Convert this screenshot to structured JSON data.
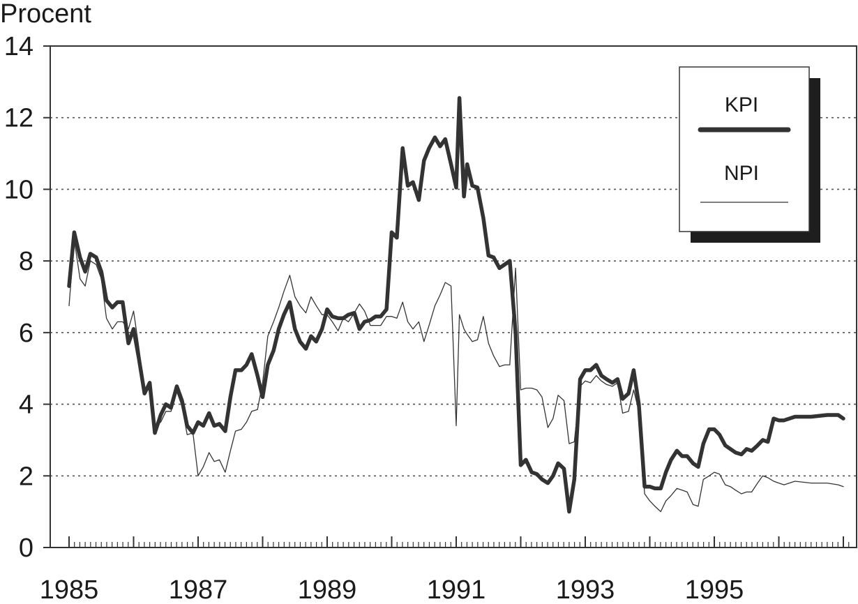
{
  "chart_data": {
    "type": "line",
    "title": "",
    "xlabel": "",
    "ylabel": "Procent",
    "ylim": [
      0,
      14
    ],
    "xlim": [
      1985,
      1997.1
    ],
    "grid": true,
    "legend_position": "top-right",
    "x_ticks": [
      "1985",
      "1987",
      "1989",
      "1991",
      "1993",
      "1995"
    ],
    "y_ticks": [
      "0",
      "2",
      "4",
      "6",
      "8",
      "10",
      "12",
      "14"
    ],
    "series": [
      {
        "name": "KPI",
        "color": "#333333",
        "style": "thick",
        "points": [
          [
            1985.0,
            7.3
          ],
          [
            1985.08,
            8.8
          ],
          [
            1985.17,
            8.1
          ],
          [
            1985.25,
            7.7
          ],
          [
            1985.33,
            8.2
          ],
          [
            1985.42,
            8.1
          ],
          [
            1985.5,
            7.7
          ],
          [
            1985.58,
            6.9
          ],
          [
            1985.67,
            6.7
          ],
          [
            1985.75,
            6.85
          ],
          [
            1985.83,
            6.85
          ],
          [
            1985.92,
            5.7
          ],
          [
            1986.0,
            6.1
          ],
          [
            1986.08,
            5.3
          ],
          [
            1986.17,
            4.3
          ],
          [
            1986.25,
            4.6
          ],
          [
            1986.33,
            3.2
          ],
          [
            1986.42,
            3.7
          ],
          [
            1986.5,
            4.0
          ],
          [
            1986.58,
            3.9
          ],
          [
            1986.67,
            4.5
          ],
          [
            1986.75,
            4.1
          ],
          [
            1986.83,
            3.4
          ],
          [
            1986.92,
            3.2
          ],
          [
            1987.0,
            3.5
          ],
          [
            1987.08,
            3.4
          ],
          [
            1987.17,
            3.75
          ],
          [
            1987.25,
            3.4
          ],
          [
            1987.33,
            3.45
          ],
          [
            1987.42,
            3.25
          ],
          [
            1987.5,
            4.2
          ],
          [
            1987.58,
            4.95
          ],
          [
            1987.67,
            4.95
          ],
          [
            1987.75,
            5.1
          ],
          [
            1987.83,
            5.4
          ],
          [
            1987.92,
            4.8
          ],
          [
            1988.0,
            4.2
          ],
          [
            1988.08,
            5.1
          ],
          [
            1988.17,
            5.5
          ],
          [
            1988.25,
            6.1
          ],
          [
            1988.33,
            6.5
          ],
          [
            1988.42,
            6.85
          ],
          [
            1988.5,
            6.1
          ],
          [
            1988.58,
            5.75
          ],
          [
            1988.67,
            5.55
          ],
          [
            1988.75,
            5.9
          ],
          [
            1988.83,
            5.75
          ],
          [
            1988.92,
            6.1
          ],
          [
            1989.0,
            6.65
          ],
          [
            1989.08,
            6.45
          ],
          [
            1989.17,
            6.4
          ],
          [
            1989.25,
            6.4
          ],
          [
            1989.33,
            6.5
          ],
          [
            1989.42,
            6.55
          ],
          [
            1989.5,
            6.1
          ],
          [
            1989.58,
            6.3
          ],
          [
            1989.67,
            6.35
          ],
          [
            1989.75,
            6.45
          ],
          [
            1989.83,
            6.45
          ],
          [
            1989.92,
            6.65
          ],
          [
            1990.0,
            8.8
          ],
          [
            1990.08,
            8.65
          ],
          [
            1990.17,
            11.15
          ],
          [
            1990.25,
            10.1
          ],
          [
            1990.33,
            10.2
          ],
          [
            1990.42,
            9.7
          ],
          [
            1990.5,
            10.8
          ],
          [
            1990.58,
            11.15
          ],
          [
            1990.67,
            11.45
          ],
          [
            1990.75,
            11.2
          ],
          [
            1990.83,
            11.4
          ],
          [
            1990.92,
            10.7
          ],
          [
            1991.0,
            10.05
          ],
          [
            1991.05,
            12.55
          ],
          [
            1991.12,
            9.8
          ],
          [
            1991.17,
            10.7
          ],
          [
            1991.25,
            10.1
          ],
          [
            1991.33,
            10.05
          ],
          [
            1991.42,
            9.2
          ],
          [
            1991.5,
            8.15
          ],
          [
            1991.58,
            8.1
          ],
          [
            1991.67,
            7.8
          ],
          [
            1991.75,
            7.9
          ],
          [
            1991.83,
            8.0
          ],
          [
            1991.92,
            6.0
          ],
          [
            1992.0,
            2.3
          ],
          [
            1992.08,
            2.45
          ],
          [
            1992.17,
            2.1
          ],
          [
            1992.25,
            2.05
          ],
          [
            1992.33,
            1.9
          ],
          [
            1992.42,
            1.8
          ],
          [
            1992.5,
            2.0
          ],
          [
            1992.58,
            2.35
          ],
          [
            1992.67,
            2.2
          ],
          [
            1992.75,
            1.0
          ],
          [
            1992.83,
            1.9
          ],
          [
            1992.92,
            4.7
          ],
          [
            1993.0,
            4.95
          ],
          [
            1993.08,
            4.95
          ],
          [
            1993.17,
            5.1
          ],
          [
            1993.25,
            4.8
          ],
          [
            1993.33,
            4.7
          ],
          [
            1993.42,
            4.6
          ],
          [
            1993.5,
            4.7
          ],
          [
            1993.58,
            4.15
          ],
          [
            1993.67,
            4.3
          ],
          [
            1993.75,
            4.95
          ],
          [
            1993.83,
            4.0
          ],
          [
            1993.92,
            1.7
          ],
          [
            1994.0,
            1.7
          ],
          [
            1994.08,
            1.65
          ],
          [
            1994.17,
            1.65
          ],
          [
            1994.25,
            2.1
          ],
          [
            1994.33,
            2.45
          ],
          [
            1994.42,
            2.7
          ],
          [
            1994.5,
            2.55
          ],
          [
            1994.58,
            2.55
          ],
          [
            1994.67,
            2.35
          ],
          [
            1994.75,
            2.25
          ],
          [
            1994.83,
            2.9
          ],
          [
            1994.92,
            3.3
          ],
          [
            1995.0,
            3.3
          ],
          [
            1995.08,
            3.15
          ],
          [
            1995.17,
            2.85
          ],
          [
            1995.25,
            2.75
          ],
          [
            1995.33,
            2.65
          ],
          [
            1995.42,
            2.6
          ],
          [
            1995.5,
            2.75
          ],
          [
            1995.58,
            2.7
          ],
          [
            1995.67,
            2.85
          ],
          [
            1995.75,
            3.0
          ],
          [
            1995.83,
            2.95
          ],
          [
            1995.92,
            3.6
          ],
          [
            1996.0,
            3.55
          ],
          [
            1996.08,
            3.55
          ],
          [
            1996.25,
            3.65
          ],
          [
            1996.5,
            3.65
          ],
          [
            1996.75,
            3.7
          ],
          [
            1996.92,
            3.7
          ],
          [
            1997.0,
            3.6
          ]
        ]
      },
      {
        "name": "NPI",
        "color": "#333333",
        "style": "thin",
        "points": [
          [
            1985.0,
            6.75
          ],
          [
            1985.08,
            8.6
          ],
          [
            1985.17,
            7.5
          ],
          [
            1985.25,
            7.3
          ],
          [
            1985.33,
            8.0
          ],
          [
            1985.42,
            7.9
          ],
          [
            1985.5,
            7.5
          ],
          [
            1985.58,
            6.4
          ],
          [
            1985.67,
            6.1
          ],
          [
            1985.75,
            6.3
          ],
          [
            1985.83,
            6.3
          ],
          [
            1985.92,
            6.1
          ],
          [
            1986.0,
            6.6
          ],
          [
            1986.08,
            5.6
          ],
          [
            1986.17,
            4.4
          ],
          [
            1986.25,
            4.4
          ],
          [
            1986.33,
            3.4
          ],
          [
            1986.42,
            3.5
          ],
          [
            1986.5,
            3.8
          ],
          [
            1986.58,
            3.8
          ],
          [
            1986.67,
            4.35
          ],
          [
            1986.75,
            3.95
          ],
          [
            1986.83,
            3.15
          ],
          [
            1986.92,
            3.2
          ],
          [
            1987.0,
            2.0
          ],
          [
            1987.08,
            2.25
          ],
          [
            1987.17,
            2.65
          ],
          [
            1987.25,
            2.4
          ],
          [
            1987.33,
            2.45
          ],
          [
            1987.42,
            2.1
          ],
          [
            1987.5,
            2.7
          ],
          [
            1987.58,
            3.25
          ],
          [
            1987.67,
            3.3
          ],
          [
            1987.75,
            3.5
          ],
          [
            1987.83,
            3.8
          ],
          [
            1987.92,
            3.85
          ],
          [
            1988.0,
            4.6
          ],
          [
            1988.08,
            5.9
          ],
          [
            1988.17,
            6.3
          ],
          [
            1988.25,
            6.7
          ],
          [
            1988.33,
            7.15
          ],
          [
            1988.42,
            7.6
          ],
          [
            1988.5,
            7.0
          ],
          [
            1988.58,
            6.75
          ],
          [
            1988.67,
            6.55
          ],
          [
            1988.75,
            7.0
          ],
          [
            1988.83,
            6.75
          ],
          [
            1988.92,
            6.5
          ],
          [
            1989.0,
            6.5
          ],
          [
            1989.08,
            6.3
          ],
          [
            1989.17,
            6.05
          ],
          [
            1989.25,
            6.4
          ],
          [
            1989.33,
            6.3
          ],
          [
            1989.42,
            6.55
          ],
          [
            1989.5,
            6.8
          ],
          [
            1989.58,
            6.6
          ],
          [
            1989.67,
            6.2
          ],
          [
            1989.75,
            6.2
          ],
          [
            1989.83,
            6.2
          ],
          [
            1989.92,
            6.45
          ],
          [
            1990.0,
            6.45
          ],
          [
            1990.08,
            6.4
          ],
          [
            1990.17,
            6.85
          ],
          [
            1990.25,
            6.3
          ],
          [
            1990.33,
            6.1
          ],
          [
            1990.42,
            6.3
          ],
          [
            1990.5,
            5.75
          ],
          [
            1990.58,
            6.2
          ],
          [
            1990.67,
            6.75
          ],
          [
            1990.75,
            7.05
          ],
          [
            1990.83,
            7.4
          ],
          [
            1990.92,
            7.3
          ],
          [
            1991.0,
            3.4
          ],
          [
            1991.05,
            6.5
          ],
          [
            1991.12,
            6.1
          ],
          [
            1991.17,
            5.95
          ],
          [
            1991.25,
            5.75
          ],
          [
            1991.33,
            5.8
          ],
          [
            1991.42,
            6.45
          ],
          [
            1991.5,
            5.7
          ],
          [
            1991.58,
            5.35
          ],
          [
            1991.67,
            5.05
          ],
          [
            1991.75,
            5.1
          ],
          [
            1991.83,
            5.1
          ],
          [
            1991.92,
            7.8
          ],
          [
            1992.0,
            4.4
          ],
          [
            1992.08,
            4.45
          ],
          [
            1992.17,
            4.45
          ],
          [
            1992.25,
            4.4
          ],
          [
            1992.33,
            4.2
          ],
          [
            1992.42,
            3.35
          ],
          [
            1992.5,
            3.6
          ],
          [
            1992.58,
            4.25
          ],
          [
            1992.67,
            4.1
          ],
          [
            1992.75,
            2.9
          ],
          [
            1992.83,
            2.95
          ],
          [
            1992.92,
            4.5
          ],
          [
            1993.0,
            4.65
          ],
          [
            1993.08,
            4.6
          ],
          [
            1993.17,
            4.8
          ],
          [
            1993.25,
            4.65
          ],
          [
            1993.33,
            4.55
          ],
          [
            1993.42,
            4.5
          ],
          [
            1993.5,
            4.6
          ],
          [
            1993.58,
            3.75
          ],
          [
            1993.67,
            3.8
          ],
          [
            1993.75,
            4.4
          ],
          [
            1993.83,
            3.8
          ],
          [
            1993.92,
            1.5
          ],
          [
            1994.0,
            1.3
          ],
          [
            1994.08,
            1.15
          ],
          [
            1994.17,
            1.0
          ],
          [
            1994.25,
            1.3
          ],
          [
            1994.33,
            1.45
          ],
          [
            1994.42,
            1.65
          ],
          [
            1994.5,
            1.6
          ],
          [
            1994.58,
            1.55
          ],
          [
            1994.67,
            1.2
          ],
          [
            1994.75,
            1.15
          ],
          [
            1994.83,
            1.9
          ],
          [
            1994.92,
            2.0
          ],
          [
            1995.0,
            2.1
          ],
          [
            1995.08,
            2.05
          ],
          [
            1995.17,
            1.75
          ],
          [
            1995.25,
            1.7
          ],
          [
            1995.33,
            1.6
          ],
          [
            1995.42,
            1.5
          ],
          [
            1995.5,
            1.55
          ],
          [
            1995.58,
            1.55
          ],
          [
            1995.67,
            1.8
          ],
          [
            1995.75,
            2.0
          ],
          [
            1995.83,
            1.95
          ],
          [
            1995.92,
            1.85
          ],
          [
            1996.0,
            1.8
          ],
          [
            1996.08,
            1.75
          ],
          [
            1996.25,
            1.85
          ],
          [
            1996.5,
            1.8
          ],
          [
            1996.75,
            1.8
          ],
          [
            1996.92,
            1.75
          ],
          [
            1997.0,
            1.7
          ]
        ]
      }
    ]
  }
}
